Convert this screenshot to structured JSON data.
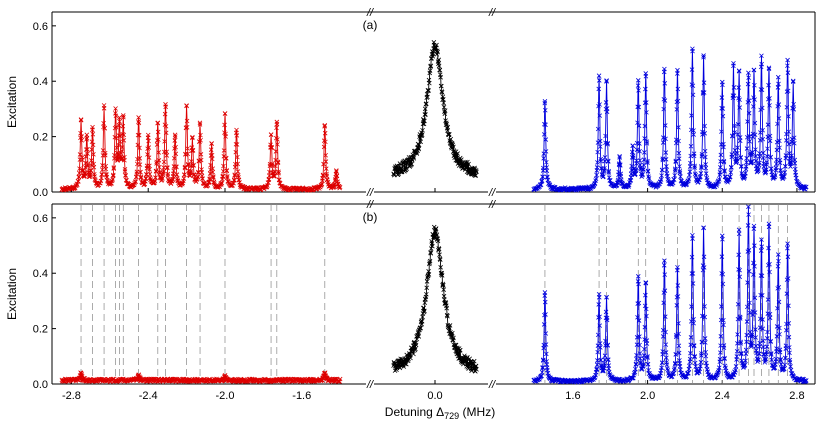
{
  "chart_data": {
    "type": "scatter",
    "xlabel": "Detuning Δ729 (MHz)",
    "xlabel_parts": {
      "main": "Detuning Δ",
      "sub": "729",
      "unit": " (MHz)"
    },
    "ylabel": "Excitation",
    "ylim": [
      0,
      0.65
    ],
    "y_ticks": [
      "0.0",
      "0.2",
      "0.4",
      "0.6"
    ],
    "x_segments": [
      {
        "name": "left",
        "xlim": [
          -2.87,
          -1.38
        ],
        "ticks": [
          {
            "label": "-2.8",
            "v": -2.8
          },
          {
            "label": "-2.4",
            "v": -2.4
          },
          {
            "label": "-2.0",
            "v": -2.0
          },
          {
            "label": "-1.6",
            "v": -1.6
          }
        ]
      },
      {
        "name": "center",
        "xlim": [
          -0.235,
          0.235
        ],
        "ticks": [
          {
            "label": "0.0",
            "v": 0.0
          }
        ]
      },
      {
        "name": "right",
        "xlim": [
          1.37,
          2.87
        ],
        "ticks": [
          {
            "label": "1.6",
            "v": 1.6
          },
          {
            "label": "2.0",
            "v": 2.0
          },
          {
            "label": "2.4",
            "v": 2.4
          },
          {
            "label": "2.8",
            "v": 2.8
          }
        ]
      }
    ],
    "break_mark": "//",
    "colors": {
      "red": "#dd0000",
      "black": "#000000",
      "blue": "#0000dd",
      "guide": "#888888"
    },
    "resonance_lines_left": [
      -2.75,
      -2.69,
      -2.63,
      -2.57,
      -2.55,
      -2.53,
      -2.45,
      -2.35,
      -2.31,
      -2.2,
      -2.13,
      -2.0,
      -1.76,
      -1.73,
      -1.48
    ],
    "resonance_lines_right": [
      1.45,
      1.74,
      1.78,
      1.95,
      1.99,
      2.09,
      2.16,
      2.24,
      2.3,
      2.4,
      2.49,
      2.54,
      2.57,
      2.61,
      2.65,
      2.7,
      2.75
    ],
    "panels": [
      {
        "label": "(a)",
        "series": [
          {
            "name": "red",
            "segment": "left",
            "baseline": 0.008,
            "peaks": [
              {
                "x": -2.75,
                "y": 0.25
              },
              {
                "x": -2.72,
                "y": 0.19
              },
              {
                "x": -2.69,
                "y": 0.22
              },
              {
                "x": -2.63,
                "y": 0.3
              },
              {
                "x": -2.57,
                "y": 0.28
              },
              {
                "x": -2.55,
                "y": 0.23
              },
              {
                "x": -2.53,
                "y": 0.25
              },
              {
                "x": -2.45,
                "y": 0.26
              },
              {
                "x": -2.4,
                "y": 0.2
              },
              {
                "x": -2.35,
                "y": 0.24
              },
              {
                "x": -2.31,
                "y": 0.31
              },
              {
                "x": -2.26,
                "y": 0.2
              },
              {
                "x": -2.2,
                "y": 0.3
              },
              {
                "x": -2.17,
                "y": 0.18
              },
              {
                "x": -2.13,
                "y": 0.24
              },
              {
                "x": -2.07,
                "y": 0.17
              },
              {
                "x": -2.0,
                "y": 0.28
              },
              {
                "x": -1.94,
                "y": 0.22
              },
              {
                "x": -1.76,
                "y": 0.2
              },
              {
                "x": -1.73,
                "y": 0.25
              },
              {
                "x": -1.48,
                "y": 0.24
              },
              {
                "x": -1.42,
                "y": 0.07
              }
            ]
          },
          {
            "name": "black",
            "segment": "center",
            "center": 0.0,
            "amplitude": 0.53,
            "width": 0.045,
            "floor": 0.05
          },
          {
            "name": "blue",
            "segment": "right",
            "baseline": 0.008,
            "peaks": [
              {
                "x": 1.45,
                "y": 0.33
              },
              {
                "x": 1.74,
                "y": 0.41
              },
              {
                "x": 1.78,
                "y": 0.39
              },
              {
                "x": 1.85,
                "y": 0.12
              },
              {
                "x": 1.92,
                "y": 0.15
              },
              {
                "x": 1.95,
                "y": 0.39
              },
              {
                "x": 1.99,
                "y": 0.42
              },
              {
                "x": 2.09,
                "y": 0.44
              },
              {
                "x": 2.16,
                "y": 0.43
              },
              {
                "x": 2.24,
                "y": 0.51
              },
              {
                "x": 2.3,
                "y": 0.48
              },
              {
                "x": 2.4,
                "y": 0.39
              },
              {
                "x": 2.46,
                "y": 0.44
              },
              {
                "x": 2.49,
                "y": 0.42
              },
              {
                "x": 2.54,
                "y": 0.41
              },
              {
                "x": 2.57,
                "y": 0.42
              },
              {
                "x": 2.61,
                "y": 0.47
              },
              {
                "x": 2.65,
                "y": 0.43
              },
              {
                "x": 2.7,
                "y": 0.4
              },
              {
                "x": 2.75,
                "y": 0.46
              },
              {
                "x": 2.78,
                "y": 0.38
              }
            ]
          }
        ]
      },
      {
        "label": "(b)",
        "series": [
          {
            "name": "red",
            "segment": "left",
            "baseline": 0.012,
            "peaks": [
              {
                "x": -2.75,
                "y": 0.04
              },
              {
                "x": -2.45,
                "y": 0.03
              },
              {
                "x": -2.0,
                "y": 0.025
              },
              {
                "x": -1.48,
                "y": 0.04
              }
            ]
          },
          {
            "name": "black",
            "segment": "center",
            "center": 0.0,
            "amplitude": 0.55,
            "width": 0.048,
            "floor": 0.03
          },
          {
            "name": "blue",
            "segment": "right",
            "baseline": 0.008,
            "peaks": [
              {
                "x": 1.45,
                "y": 0.33
              },
              {
                "x": 1.74,
                "y": 0.32
              },
              {
                "x": 1.78,
                "y": 0.31
              },
              {
                "x": 1.95,
                "y": 0.38
              },
              {
                "x": 1.99,
                "y": 0.36
              },
              {
                "x": 2.09,
                "y": 0.44
              },
              {
                "x": 2.16,
                "y": 0.41
              },
              {
                "x": 2.24,
                "y": 0.53
              },
              {
                "x": 2.3,
                "y": 0.56
              },
              {
                "x": 2.4,
                "y": 0.53
              },
              {
                "x": 2.49,
                "y": 0.54
              },
              {
                "x": 2.54,
                "y": 0.61
              },
              {
                "x": 2.57,
                "y": 0.54
              },
              {
                "x": 2.61,
                "y": 0.5
              },
              {
                "x": 2.65,
                "y": 0.56
              },
              {
                "x": 2.7,
                "y": 0.45
              },
              {
                "x": 2.75,
                "y": 0.5
              }
            ]
          }
        ]
      }
    ]
  }
}
